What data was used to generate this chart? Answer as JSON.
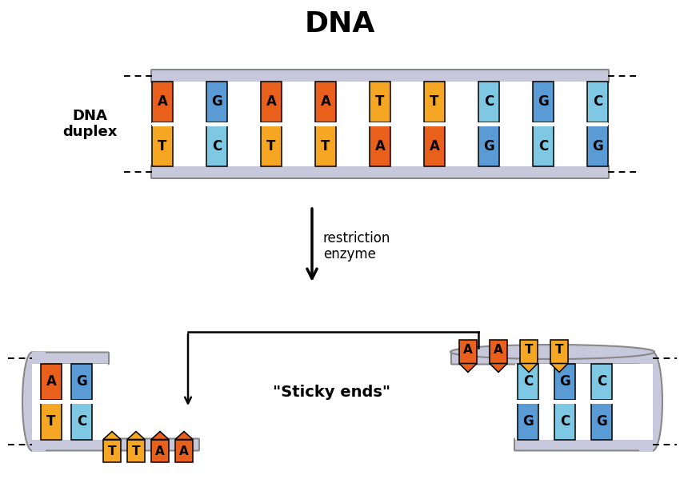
{
  "title": "DNA",
  "title_fontsize": 26,
  "title_fontweight": "bold",
  "bg_color": "#ffffff",
  "orange": "#E8601C",
  "blue": "#5B9BD5",
  "yellow": "#F5A623",
  "light_blue": "#7EC8E3",
  "strand_color": "#C8C8DC",
  "strand_border": "#888888",
  "top_pairs": [
    {
      "top": "A",
      "bot": "T",
      "tc": "#E8601C",
      "bc": "#F5A623"
    },
    {
      "top": "G",
      "bot": "C",
      "tc": "#5B9BD5",
      "bc": "#7EC8E3"
    },
    {
      "top": "A",
      "bot": "T",
      "tc": "#E8601C",
      "bc": "#F5A623"
    },
    {
      "top": "A",
      "bot": "T",
      "tc": "#E8601C",
      "bc": "#F5A623"
    },
    {
      "top": "T",
      "bot": "A",
      "tc": "#F5A623",
      "bc": "#E8601C"
    },
    {
      "top": "T",
      "bot": "A",
      "tc": "#F5A623",
      "bc": "#E8601C"
    },
    {
      "top": "C",
      "bot": "G",
      "tc": "#7EC8E3",
      "bc": "#5B9BD5"
    },
    {
      "top": "G",
      "bot": "C",
      "tc": "#5B9BD5",
      "bc": "#7EC8E3"
    },
    {
      "top": "C",
      "bot": "G",
      "tc": "#7EC8E3",
      "bc": "#5B9BD5"
    }
  ],
  "left_pairs": [
    {
      "top": "A",
      "bot": "T",
      "tc": "#E8601C",
      "bc": "#F5A623"
    },
    {
      "top": "G",
      "bot": "C",
      "tc": "#5B9BD5",
      "bc": "#7EC8E3"
    }
  ],
  "left_bot_free": [
    {
      "letter": "T",
      "color": "#F5A623"
    },
    {
      "letter": "T",
      "color": "#F5A623"
    },
    {
      "letter": "A",
      "color": "#E8601C"
    },
    {
      "letter": "A",
      "color": "#E8601C"
    }
  ],
  "right_top_free": [
    {
      "letter": "A",
      "color": "#E8601C"
    },
    {
      "letter": "A",
      "color": "#E8601C"
    },
    {
      "letter": "T",
      "color": "#F5A623"
    },
    {
      "letter": "T",
      "color": "#F5A623"
    }
  ],
  "right_pairs": [
    {
      "top": "C",
      "bot": "G",
      "tc": "#7EC8E3",
      "bc": "#5B9BD5"
    },
    {
      "top": "G",
      "bot": "C",
      "tc": "#5B9BD5",
      "bc": "#7EC8E3"
    },
    {
      "top": "C",
      "bot": "G",
      "tc": "#7EC8E3",
      "bc": "#5B9BD5"
    }
  ]
}
